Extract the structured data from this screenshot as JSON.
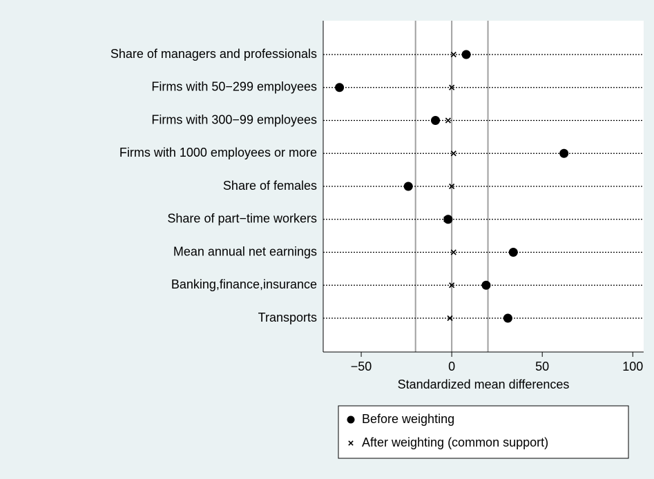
{
  "chart_data": {
    "type": "dot",
    "xlabel": "Standardized mean differences",
    "categories": [
      "Share of managers and professionals",
      "Firms with 50−299 employees",
      "Firms with 300−99 employees",
      "Firms with 1000 employees or more",
      "Share of females",
      "Share of part−time workers",
      "Mean annual net earnings",
      "Banking,finance,insurance",
      "Transports"
    ],
    "series": [
      {
        "name": "Before weighting",
        "color": "#000000",
        "marker": "circle",
        "values": [
          8,
          -62,
          -9,
          62,
          -24,
          -2,
          34,
          19,
          31
        ]
      },
      {
        "name": "After weighting (common support)",
        "color": "#000000",
        "marker": "x",
        "values": [
          1,
          0,
          -2,
          1,
          0,
          -3,
          1,
          0,
          -1
        ]
      }
    ],
    "xlim": [
      -71,
      106
    ],
    "xticks": [
      {
        "value": -50,
        "label": "−50"
      },
      0,
      50,
      100
    ],
    "reference_lines": [
      -20,
      0,
      20
    ],
    "legend": "bottom"
  }
}
